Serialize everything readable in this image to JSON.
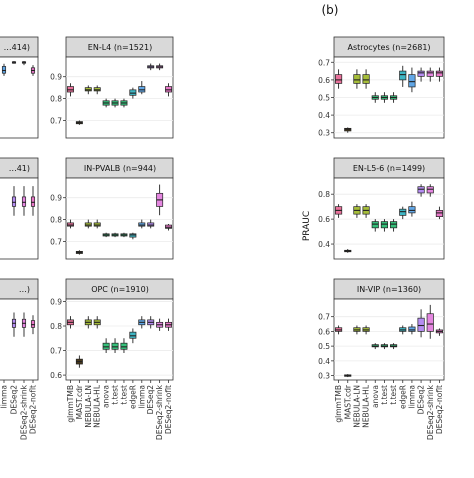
{
  "figure_label_b": "(b)",
  "ylabel_right": "PRAUC",
  "methods": [
    "glmmTMB",
    "MAST.cdr",
    "NEBULA-LN",
    "NEBULA-HL",
    "anova",
    "t.test",
    "t.test",
    "edgeR",
    "limma",
    "DESeq2",
    "DESeq2-shrink",
    "DESeq2-noflt"
  ],
  "colors": {
    "glmmTMB": "#e8719b",
    "MAST.cdr": "#4a3a1c",
    "NEBULA-LN": "#a6bd3a",
    "NEBULA-HL": "#a6bd3a",
    "anova": "#35c07a",
    "t.test": "#35c07a",
    "edgeR": "#3fb6c4",
    "limma": "#62a7e6",
    "DESeq2": "#b58df2",
    "DESeq2-shrink": "#e486e0",
    "DESeq2-noflt": "#e878c8"
  },
  "chart_data": [
    {
      "type": "box",
      "title": "…414)",
      "ylim": [
        0.4,
        1.0
      ],
      "ticks": [],
      "boxes": {
        "limma": [
          0.86,
          0.88,
          0.9,
          0.93,
          0.95
        ],
        "DESeq2-shrink": [
          0.94,
          0.955,
          0.96,
          0.965,
          0.97
        ],
        "DESeq2": [
          0.95,
          0.955,
          0.96,
          0.965,
          0.97
        ],
        "DESeq2-noflt": [
          0.86,
          0.88,
          0.9,
          0.92,
          0.94
        ]
      }
    },
    {
      "type": "box",
      "title": "EN-L4 (n=1521)",
      "ylim": [
        0.62,
        0.99
      ],
      "ticks": [
        "0.9",
        "0.8",
        "0.7"
      ],
      "boxes": {
        "glmmTMB": [
          0.81,
          0.83,
          0.84,
          0.855,
          0.87
        ],
        "MAST.cdr": [
          0.68,
          0.685,
          0.69,
          0.695,
          0.7
        ],
        "NEBULA-LN": [
          0.82,
          0.835,
          0.84,
          0.85,
          0.86
        ],
        "NEBULA-HL": [
          0.82,
          0.835,
          0.84,
          0.85,
          0.86
        ],
        "anova": [
          0.76,
          0.77,
          0.78,
          0.79,
          0.8
        ],
        "t.test": [
          0.76,
          0.77,
          0.78,
          0.79,
          0.8
        ],
        "edgeR": [
          0.8,
          0.815,
          0.825,
          0.84,
          0.85
        ],
        "limma": [
          0.82,
          0.83,
          0.84,
          0.855,
          0.88
        ],
        "DESeq2": [
          0.93,
          0.94,
          0.945,
          0.95,
          0.96
        ],
        "DESeq2-shrink": [
          0.93,
          0.94,
          0.945,
          0.95,
          0.96
        ],
        "DESeq2-noflt": [
          0.81,
          0.83,
          0.84,
          0.855,
          0.87
        ]
      }
    },
    {
      "type": "box",
      "title": "…41)",
      "ylim": [
        0.4,
        1.0
      ],
      "ticks": [],
      "boxes": {
        "DESeq2": [
          0.72,
          0.79,
          0.82,
          0.86,
          0.94
        ],
        "DESeq2-shrink": [
          0.72,
          0.79,
          0.82,
          0.86,
          0.94
        ],
        "DESeq2-noflt": [
          0.72,
          0.79,
          0.82,
          0.86,
          0.94
        ]
      }
    },
    {
      "type": "box",
      "title": "IN-PVALB (n=944)",
      "ylim": [
        0.62,
        0.99
      ],
      "ticks": [
        "0.9",
        "0.8",
        "0.7"
      ],
      "boxes": {
        "glmmTMB": [
          0.76,
          0.77,
          0.775,
          0.785,
          0.8
        ],
        "MAST.cdr": [
          0.64,
          0.645,
          0.65,
          0.655,
          0.66
        ],
        "NEBULA-LN": [
          0.76,
          0.77,
          0.775,
          0.785,
          0.8
        ],
        "NEBULA-HL": [
          0.76,
          0.77,
          0.775,
          0.785,
          0.8
        ],
        "anova": [
          0.72,
          0.725,
          0.73,
          0.735,
          0.74
        ],
        "t.test": [
          0.72,
          0.725,
          0.73,
          0.735,
          0.74
        ],
        "edgeR": [
          0.71,
          0.72,
          0.73,
          0.735,
          0.74
        ],
        "limma": [
          0.76,
          0.77,
          0.775,
          0.785,
          0.8
        ],
        "DESeq2": [
          0.76,
          0.77,
          0.775,
          0.785,
          0.8
        ],
        "DESeq2-shrink": [
          0.82,
          0.86,
          0.89,
          0.92,
          0.96
        ],
        "DESeq2-noflt": [
          0.75,
          0.76,
          0.765,
          0.775,
          0.78
        ]
      }
    },
    {
      "type": "box",
      "title": "…)",
      "ylim": [
        0.4,
        1.0
      ],
      "ticks": [],
      "boxes": {
        "DESeq2": [
          0.72,
          0.79,
          0.82,
          0.85,
          0.9
        ],
        "DESeq2-shrink": [
          0.72,
          0.79,
          0.82,
          0.85,
          0.9
        ],
        "DESeq2-noflt": [
          0.74,
          0.79,
          0.81,
          0.84,
          0.88
        ]
      }
    },
    {
      "type": "box",
      "title": "OPC (n=1910)",
      "ylim": [
        0.58,
        0.91
      ],
      "ticks": [
        "0.9",
        "0.8",
        "0.7",
        "0.6"
      ],
      "boxes": {
        "glmmTMB": [
          0.79,
          0.805,
          0.815,
          0.825,
          0.84
        ],
        "MAST.cdr": [
          0.63,
          0.645,
          0.655,
          0.665,
          0.68
        ],
        "NEBULA-LN": [
          0.79,
          0.805,
          0.815,
          0.825,
          0.84
        ],
        "NEBULA-HL": [
          0.79,
          0.805,
          0.815,
          0.825,
          0.84
        ],
        "anova": [
          0.69,
          0.705,
          0.715,
          0.73,
          0.75
        ],
        "t.test": [
          0.69,
          0.705,
          0.715,
          0.73,
          0.75
        ],
        "edgeR": [
          0.73,
          0.75,
          0.76,
          0.775,
          0.79
        ],
        "limma": [
          0.79,
          0.805,
          0.815,
          0.825,
          0.84
        ],
        "DESeq2": [
          0.79,
          0.805,
          0.815,
          0.825,
          0.84
        ],
        "DESeq2-shrink": [
          0.78,
          0.795,
          0.805,
          0.815,
          0.83
        ],
        "DESeq2-noflt": [
          0.78,
          0.795,
          0.805,
          0.815,
          0.83
        ]
      }
    },
    {
      "type": "box",
      "title": "Astrocytes (n=2681)",
      "ylim": [
        0.27,
        0.73
      ],
      "ticks": [
        "0.7",
        "0.6",
        "0.5",
        "0.4",
        "0.3"
      ],
      "boxes": {
        "glmmTMB": [
          0.55,
          0.58,
          0.6,
          0.63,
          0.66
        ],
        "MAST.cdr": [
          0.3,
          0.31,
          0.32,
          0.325,
          0.33
        ],
        "NEBULA-LN": [
          0.55,
          0.58,
          0.6,
          0.63,
          0.66
        ],
        "NEBULA-HL": [
          0.55,
          0.58,
          0.6,
          0.63,
          0.66
        ],
        "anova": [
          0.47,
          0.49,
          0.5,
          0.51,
          0.53
        ],
        "t.test": [
          0.47,
          0.49,
          0.5,
          0.51,
          0.53
        ],
        "edgeR": [
          0.56,
          0.6,
          0.63,
          0.65,
          0.68
        ],
        "limma": [
          0.53,
          0.56,
          0.59,
          0.63,
          0.67
        ],
        "DESeq2": [
          0.59,
          0.62,
          0.64,
          0.65,
          0.67
        ],
        "DESeq2-shrink": [
          0.59,
          0.62,
          0.64,
          0.65,
          0.67
        ],
        "DESeq2-noflt": [
          0.59,
          0.62,
          0.64,
          0.65,
          0.67
        ]
      }
    },
    {
      "type": "box",
      "title": "EN-L5-6 (n=1499)",
      "ylim": [
        0.28,
        0.93
      ],
      "ticks": [
        "0.8",
        "0.6",
        "0.4"
      ],
      "boxes": {
        "glmmTMB": [
          0.61,
          0.64,
          0.67,
          0.7,
          0.72
        ],
        "MAST.cdr": [
          0.33,
          0.34,
          0.345,
          0.35,
          0.36
        ],
        "NEBULA-LN": [
          0.61,
          0.64,
          0.67,
          0.7,
          0.72
        ],
        "NEBULA-HL": [
          0.61,
          0.64,
          0.67,
          0.7,
          0.72
        ],
        "anova": [
          0.5,
          0.53,
          0.56,
          0.58,
          0.6
        ],
        "t.test": [
          0.5,
          0.53,
          0.56,
          0.58,
          0.6
        ],
        "edgeR": [
          0.6,
          0.63,
          0.66,
          0.68,
          0.7
        ],
        "limma": [
          0.62,
          0.65,
          0.67,
          0.7,
          0.74
        ],
        "DESeq2": [
          0.78,
          0.81,
          0.84,
          0.86,
          0.88
        ],
        "DESeq2-shrink": [
          0.78,
          0.81,
          0.84,
          0.86,
          0.88
        ],
        "DESeq2-noflt": [
          0.6,
          0.62,
          0.65,
          0.67,
          0.7
        ]
      }
    },
    {
      "type": "box",
      "title": "IN-VIP (n=1360)",
      "ylim": [
        0.27,
        0.82
      ],
      "ticks": [
        "0.7",
        "0.6",
        "0.5",
        "0.4",
        "0.3"
      ],
      "boxes": {
        "glmmTMB": [
          0.58,
          0.6,
          0.61,
          0.625,
          0.64
        ],
        "MAST.cdr": [
          0.29,
          0.295,
          0.3,
          0.305,
          0.31
        ],
        "NEBULA-LN": [
          0.58,
          0.6,
          0.61,
          0.625,
          0.64
        ],
        "NEBULA-HL": [
          0.58,
          0.6,
          0.61,
          0.625,
          0.64
        ],
        "anova": [
          0.48,
          0.495,
          0.5,
          0.51,
          0.52
        ],
        "t.test": [
          0.48,
          0.495,
          0.5,
          0.51,
          0.52
        ],
        "edgeR": [
          0.58,
          0.6,
          0.61,
          0.625,
          0.64
        ],
        "limma": [
          0.58,
          0.6,
          0.61,
          0.63,
          0.65
        ],
        "DESeq2": [
          0.56,
          0.6,
          0.64,
          0.69,
          0.75
        ],
        "DESeq2-shrink": [
          0.55,
          0.6,
          0.65,
          0.72,
          0.78
        ],
        "DESeq2-noflt": [
          0.57,
          0.59,
          0.6,
          0.61,
          0.62
        ]
      }
    }
  ]
}
